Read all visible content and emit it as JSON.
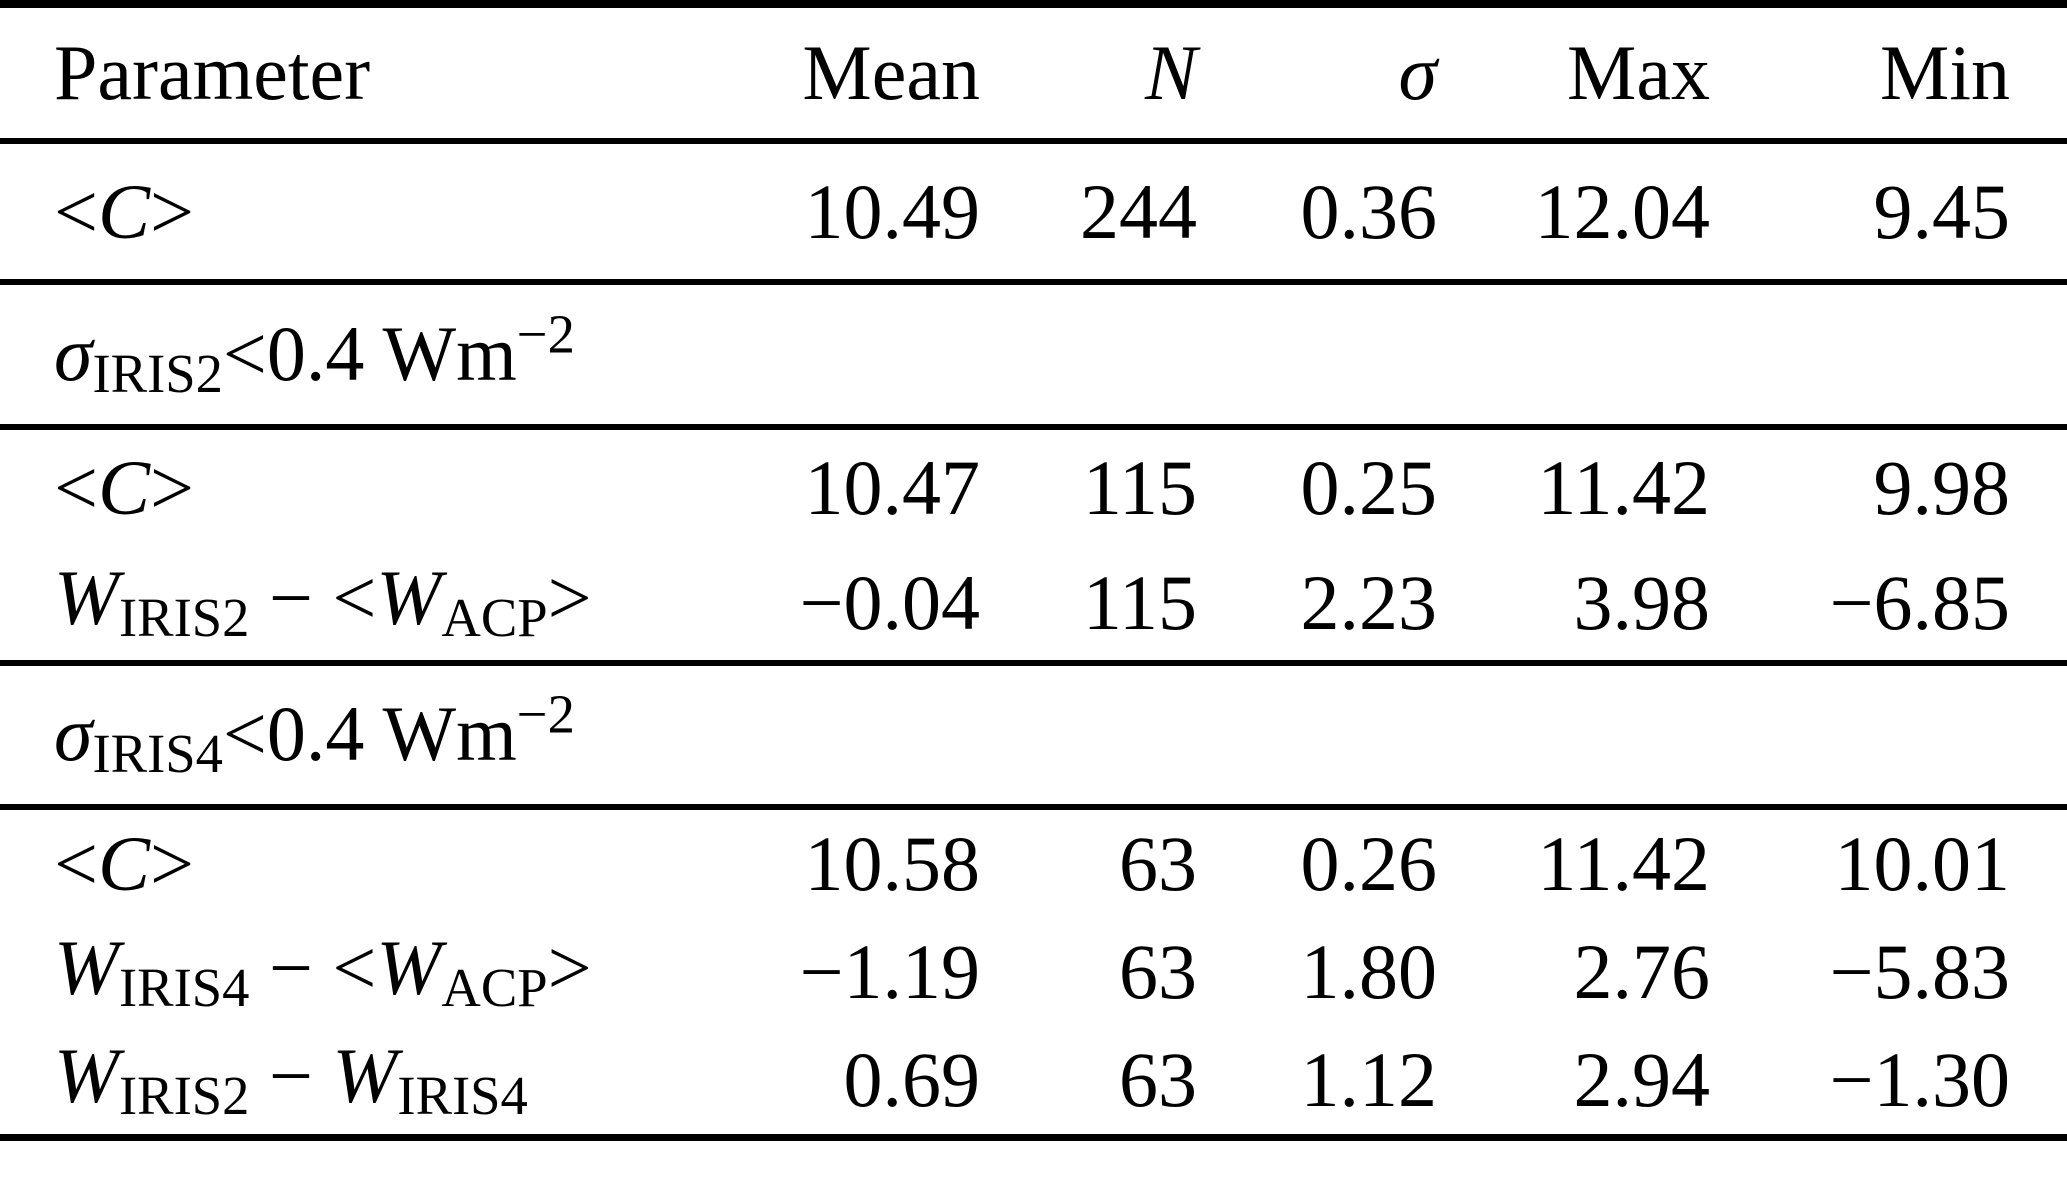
{
  "table": {
    "background": "#ffffff",
    "text_color": "#000000",
    "rule_color": "#000000",
    "columns": [
      {
        "label": "Parameter"
      },
      {
        "label": "Mean"
      },
      {
        "label": "N"
      },
      {
        "label": "σ"
      },
      {
        "label": "Max"
      },
      {
        "label": "Min"
      }
    ],
    "sections": [
      {
        "rows": [
          {
            "parameter": [
              {
                "t": "<",
                "s": "n"
              },
              {
                "t": "C",
                "s": "i"
              },
              {
                "t": ">",
                "s": "n"
              }
            ],
            "mean": "10.49",
            "n": "244",
            "sigma": "0.36",
            "max": "12.04",
            "min": "9.45"
          }
        ]
      },
      {
        "condition": [
          {
            "t": "σ",
            "s": "i"
          },
          {
            "t": "IRIS2",
            "s": "sub"
          },
          {
            "t": "<0.4 Wm",
            "s": "n"
          },
          {
            "t": "−2",
            "s": "sup"
          }
        ],
        "rows": [
          {
            "parameter": [
              {
                "t": "<",
                "s": "n"
              },
              {
                "t": "C",
                "s": "i"
              },
              {
                "t": ">",
                "s": "n"
              }
            ],
            "mean": "10.47",
            "n": "115",
            "sigma": "0.25",
            "max": "11.42",
            "min": "9.98"
          },
          {
            "parameter": [
              {
                "t": "W",
                "s": "i"
              },
              {
                "t": "IRIS2",
                "s": "sub"
              },
              {
                "t": " − <",
                "s": "n"
              },
              {
                "t": "W",
                "s": "i"
              },
              {
                "t": "ACP",
                "s": "sub"
              },
              {
                "t": ">",
                "s": "n"
              }
            ],
            "mean": "−0.04",
            "n": "115",
            "sigma": "2.23",
            "max": "3.98",
            "min": "−6.85"
          }
        ]
      },
      {
        "condition": [
          {
            "t": "σ",
            "s": "i"
          },
          {
            "t": "IRIS4",
            "s": "sub"
          },
          {
            "t": "<0.4 Wm",
            "s": "n"
          },
          {
            "t": "−2",
            "s": "sup"
          }
        ],
        "rows": [
          {
            "parameter": [
              {
                "t": "<",
                "s": "n"
              },
              {
                "t": "C",
                "s": "i"
              },
              {
                "t": ">",
                "s": "n"
              }
            ],
            "mean": "10.58",
            "n": "63",
            "sigma": "0.26",
            "max": "11.42",
            "min": "10.01"
          },
          {
            "parameter": [
              {
                "t": "W",
                "s": "i"
              },
              {
                "t": "IRIS4",
                "s": "sub"
              },
              {
                "t": " − <",
                "s": "n"
              },
              {
                "t": "W",
                "s": "i"
              },
              {
                "t": "ACP",
                "s": "sub"
              },
              {
                "t": ">",
                "s": "n"
              }
            ],
            "mean": "−1.19",
            "n": "63",
            "sigma": "1.80",
            "max": "2.76",
            "min": "−5.83"
          },
          {
            "parameter": [
              {
                "t": "W",
                "s": "i"
              },
              {
                "t": "IRIS2",
                "s": "sub"
              },
              {
                "t": " − ",
                "s": "n"
              },
              {
                "t": "W",
                "s": "i"
              },
              {
                "t": "IRIS4",
                "s": "sub"
              }
            ],
            "mean": "0.69",
            "n": "63",
            "sigma": "1.12",
            "max": "2.94",
            "min": "−1.30"
          }
        ]
      }
    ]
  }
}
